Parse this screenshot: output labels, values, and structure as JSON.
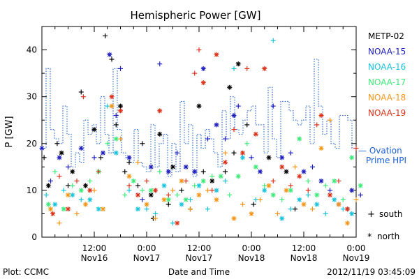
{
  "chart_data": {
    "type": "scatter",
    "title": "Hemispheric Power [GW]",
    "xlabel": "Date and Time",
    "ylabel": "P [GW]",
    "ylim": [
      0,
      45
    ],
    "y_ticks": [
      0,
      10,
      20,
      30,
      40
    ],
    "x_range_hours": [
      0,
      72
    ],
    "x_ticks": [
      {
        "hour": 12,
        "time": "12:00",
        "date": "Nov16"
      },
      {
        "hour": 24,
        "time": "0:00",
        "date": "Nov17"
      },
      {
        "hour": 36,
        "time": "12:00",
        "date": "Nov17"
      },
      {
        "hour": 48,
        "time": "0:00",
        "date": "Nov18"
      },
      {
        "hour": 60,
        "time": "12:00",
        "date": "Nov18"
      },
      {
        "hour": 72,
        "time": "0:00",
        "date": "Nov19"
      }
    ],
    "footer_left": "Plot: CCMC",
    "footer_right": "2012/11/19 03:45:09",
    "ovation_label": [
      "— Ovation",
      "Prime HPI"
    ],
    "symbol_legend": [
      {
        "symbol": "+",
        "label": "south"
      },
      {
        "symbol": "*",
        "label": "north"
      }
    ],
    "ovation": {
      "name": "Ovation Prime HPI",
      "color": "#1a5fd6",
      "values": [
        19,
        36,
        23,
        21,
        20,
        28,
        22,
        15,
        18,
        16,
        25,
        22,
        24,
        20,
        30,
        22,
        18,
        36,
        23,
        18,
        17,
        16,
        23,
        16,
        15,
        14,
        24,
        15,
        20,
        22,
        13,
        20,
        14,
        29,
        20,
        24,
        13,
        22,
        19,
        23,
        21,
        18,
        15,
        27,
        21,
        30,
        23,
        22,
        25,
        27,
        28,
        24,
        24,
        18,
        32,
        21,
        17,
        29,
        29,
        27,
        25,
        24,
        25,
        28,
        20,
        38,
        28,
        22,
        25,
        20,
        19,
        26,
        26,
        25,
        19
      ]
    },
    "series": [
      {
        "name": "METP-02",
        "color": "#000000",
        "points": [
          [
            0.5,
            17,
            "+"
          ],
          [
            1.5,
            11,
            "*"
          ],
          [
            3.5,
            20,
            "+"
          ],
          [
            4.5,
            18,
            "*"
          ],
          [
            6,
            11,
            "+"
          ],
          [
            7,
            14,
            "*"
          ],
          [
            9,
            31,
            "+"
          ],
          [
            10,
            11,
            "*"
          ],
          [
            12,
            23,
            "*"
          ],
          [
            13.5,
            17,
            "+"
          ],
          [
            14.5,
            43,
            "+"
          ],
          [
            16,
            38,
            "+"
          ],
          [
            17,
            24,
            "+"
          ],
          [
            18,
            28,
            "*"
          ],
          [
            19,
            14,
            "+"
          ],
          [
            20,
            16,
            "+"
          ],
          [
            22,
            11,
            "+"
          ],
          [
            23,
            20,
            "+"
          ],
          [
            25,
            9,
            "*"
          ],
          [
            25.5,
            4,
            "+"
          ],
          [
            27,
            22,
            "*"
          ],
          [
            29,
            7,
            "+"
          ],
          [
            30,
            15,
            "*"
          ],
          [
            32,
            10,
            "+"
          ],
          [
            34,
            6,
            "+"
          ],
          [
            36,
            28,
            "*"
          ],
          [
            37,
            14,
            "+"
          ],
          [
            39,
            12,
            "*"
          ],
          [
            42,
            14,
            "+"
          ],
          [
            43,
            32,
            "*"
          ],
          [
            44,
            18,
            "+"
          ],
          [
            45,
            37,
            "*"
          ],
          [
            47,
            24,
            "+"
          ],
          [
            48.5,
            7,
            "+"
          ],
          [
            52,
            17,
            "*"
          ],
          [
            56,
            14,
            "*"
          ],
          [
            58,
            6,
            "+"
          ]
        ]
      },
      {
        "name": "NOAA-15",
        "color": "#1e1ebe",
        "points": [
          [
            0,
            19,
            "*"
          ],
          [
            2,
            12,
            "+"
          ],
          [
            4,
            17,
            "*"
          ],
          [
            6,
            15,
            "+"
          ],
          [
            9,
            19,
            "*"
          ],
          [
            12,
            17,
            "+"
          ],
          [
            14,
            18,
            "*"
          ],
          [
            15.5,
            39,
            "*"
          ],
          [
            17,
            26,
            "+"
          ],
          [
            18,
            36,
            "+"
          ],
          [
            20,
            17,
            "*"
          ],
          [
            23,
            8,
            "+"
          ],
          [
            25,
            15,
            "*"
          ],
          [
            27,
            37,
            "+"
          ],
          [
            29,
            14,
            "*"
          ],
          [
            31,
            18,
            "+"
          ],
          [
            33,
            15,
            "*"
          ],
          [
            35,
            14,
            "*"
          ],
          [
            37,
            36,
            "*"
          ],
          [
            38,
            21,
            "+"
          ],
          [
            40,
            24,
            "*"
          ],
          [
            42,
            21,
            "+"
          ],
          [
            44,
            26,
            "*"
          ],
          [
            45,
            28,
            "+"
          ],
          [
            48,
            17,
            "+"
          ],
          [
            50,
            14,
            "*"
          ],
          [
            53,
            28,
            "+"
          ],
          [
            55,
            17,
            "*"
          ],
          [
            57,
            18,
            "+"
          ],
          [
            60,
            14,
            "*"
          ],
          [
            62,
            15,
            "+"
          ],
          [
            64,
            12,
            "*"
          ],
          [
            66,
            10,
            "+"
          ],
          [
            68,
            7,
            "*"
          ],
          [
            70,
            6,
            "+"
          ],
          [
            71,
            10,
            "*"
          ],
          [
            73,
            9,
            "+"
          ]
        ]
      },
      {
        "name": "NOAA-16",
        "color": "#19c3dc",
        "points": [
          [
            1,
            9,
            "+"
          ],
          [
            3,
            7,
            "*"
          ],
          [
            5,
            10,
            "+"
          ],
          [
            7,
            9,
            "*"
          ],
          [
            9,
            8,
            "+"
          ],
          [
            11,
            8,
            "*"
          ],
          [
            13,
            6,
            "*"
          ],
          [
            15,
            28,
            "+"
          ],
          [
            17,
            18,
            "*"
          ],
          [
            20,
            10,
            "+"
          ],
          [
            22,
            6,
            "*"
          ],
          [
            24,
            6,
            "+"
          ],
          [
            26,
            5,
            "+"
          ],
          [
            28,
            11,
            "*"
          ],
          [
            30,
            3,
            "+"
          ],
          [
            32,
            7,
            "*"
          ],
          [
            34,
            8,
            "+"
          ],
          [
            36,
            11,
            "*"
          ],
          [
            38,
            6,
            "+"
          ],
          [
            40,
            10,
            "*"
          ],
          [
            42,
            12,
            "+"
          ],
          [
            44,
            36,
            "+"
          ],
          [
            46,
            17,
            "*"
          ],
          [
            49,
            8,
            "+"
          ],
          [
            51,
            10,
            "*"
          ],
          [
            53,
            42,
            "+"
          ],
          [
            55,
            4,
            "*"
          ],
          [
            57,
            6,
            "+"
          ],
          [
            59,
            8,
            "*"
          ],
          [
            61,
            9,
            "+"
          ],
          [
            63,
            7,
            "*"
          ],
          [
            65,
            5,
            "+"
          ],
          [
            67,
            8,
            "*"
          ],
          [
            69,
            6,
            "+"
          ],
          [
            71,
            5,
            "*"
          ]
        ]
      },
      {
        "name": "NOAA-17",
        "color": "#3ceb78",
        "points": [
          [
            1.5,
            7,
            "*"
          ],
          [
            3,
            14,
            "+"
          ],
          [
            5,
            6,
            "*"
          ],
          [
            7,
            11,
            "+"
          ],
          [
            9,
            10,
            "*"
          ],
          [
            11,
            12,
            "+"
          ],
          [
            13,
            14,
            "*"
          ],
          [
            15,
            20,
            "+"
          ],
          [
            17,
            21,
            "*"
          ],
          [
            19,
            9,
            "+"
          ],
          [
            21,
            12,
            "*"
          ],
          [
            23,
            10,
            "+"
          ],
          [
            25,
            10,
            "*"
          ],
          [
            27,
            14,
            "+"
          ],
          [
            29,
            8,
            "*"
          ],
          [
            31,
            9,
            "+"
          ],
          [
            33,
            8,
            "*"
          ],
          [
            35,
            11,
            "+"
          ],
          [
            37,
            12,
            "*"
          ],
          [
            39,
            13,
            "+"
          ],
          [
            41,
            13,
            "*"
          ],
          [
            43,
            9,
            "+"
          ],
          [
            45,
            13,
            "*"
          ],
          [
            47,
            20,
            "+"
          ],
          [
            49,
            15,
            "*"
          ],
          [
            51,
            11,
            "+"
          ],
          [
            53,
            9,
            "*"
          ],
          [
            55,
            8,
            "+"
          ],
          [
            57,
            10,
            "*"
          ],
          [
            59,
            21,
            "*"
          ],
          [
            61,
            12,
            "+"
          ],
          [
            63,
            9,
            "*"
          ],
          [
            65,
            11,
            "+"
          ],
          [
            67,
            12,
            "*"
          ],
          [
            69,
            8,
            "+"
          ],
          [
            71,
            17,
            "*"
          ],
          [
            73,
            11,
            "*"
          ]
        ]
      },
      {
        "name": "NOAA-18",
        "color": "#f59619",
        "points": [
          [
            2,
            6,
            "*"
          ],
          [
            4,
            3,
            "+"
          ],
          [
            6,
            9,
            "*"
          ],
          [
            8,
            5,
            "+"
          ],
          [
            10,
            7,
            "*"
          ],
          [
            12,
            10,
            "+"
          ],
          [
            14,
            6,
            "*"
          ],
          [
            16,
            28,
            "*"
          ],
          [
            18,
            21,
            "+"
          ],
          [
            20,
            13,
            "*"
          ],
          [
            22,
            16,
            "+"
          ],
          [
            24,
            7,
            "*"
          ],
          [
            26,
            4,
            "+"
          ],
          [
            28,
            8,
            "*"
          ],
          [
            30,
            10,
            "+"
          ],
          [
            32,
            12,
            "*"
          ],
          [
            34,
            6,
            "+"
          ],
          [
            36,
            9,
            "*"
          ],
          [
            38,
            10,
            "+"
          ],
          [
            40,
            8,
            "*"
          ],
          [
            42,
            18,
            "+"
          ],
          [
            44,
            4,
            "*"
          ],
          [
            46,
            7,
            "+"
          ],
          [
            48,
            5,
            "*"
          ],
          [
            50,
            8,
            "+"
          ],
          [
            52,
            11,
            "*"
          ],
          [
            54,
            5,
            "+"
          ],
          [
            56,
            10,
            "*"
          ],
          [
            58,
            15,
            "+"
          ],
          [
            60,
            7,
            "*"
          ],
          [
            62,
            6,
            "+"
          ],
          [
            64,
            19,
            "*"
          ],
          [
            66,
            25,
            "+"
          ],
          [
            68,
            7,
            "*"
          ],
          [
            70,
            3,
            "*"
          ],
          [
            72,
            8,
            "+"
          ]
        ]
      },
      {
        "name": "NOAA-19",
        "color": "#dc3219",
        "points": [
          [
            2.5,
            5,
            "*"
          ],
          [
            4,
            13,
            "+"
          ],
          [
            6,
            6,
            "*"
          ],
          [
            8,
            12,
            "+"
          ],
          [
            9.5,
            30,
            "+"
          ],
          [
            11,
            10,
            "*"
          ],
          [
            13,
            14,
            "+"
          ],
          [
            16,
            30,
            "*"
          ],
          [
            18,
            27,
            "*"
          ],
          [
            20,
            11,
            "+"
          ],
          [
            22,
            9,
            "*"
          ],
          [
            24,
            12,
            "+"
          ],
          [
            26,
            10,
            "*"
          ],
          [
            27,
            27,
            "*"
          ],
          [
            29,
            9,
            "+"
          ],
          [
            31,
            3,
            "*"
          ],
          [
            33,
            12,
            "+"
          ],
          [
            35,
            35,
            "+"
          ],
          [
            36,
            40,
            "+"
          ],
          [
            37,
            33,
            "*"
          ],
          [
            39,
            10,
            "+"
          ],
          [
            40,
            39,
            "*"
          ],
          [
            42,
            16,
            "*"
          ],
          [
            44,
            23,
            "+"
          ],
          [
            46,
            18,
            "*"
          ],
          [
            47,
            36,
            "+"
          ],
          [
            49,
            22,
            "*"
          ],
          [
            51,
            36,
            "*"
          ],
          [
            53,
            12,
            "+"
          ],
          [
            55,
            15,
            "*"
          ],
          [
            57,
            11,
            "+"
          ],
          [
            59,
            13,
            "*"
          ],
          [
            61,
            10,
            "+"
          ],
          [
            63,
            24,
            "+"
          ],
          [
            64,
            26,
            "*"
          ],
          [
            66,
            9,
            "*"
          ],
          [
            68,
            12,
            "+"
          ],
          [
            70,
            6,
            "*"
          ],
          [
            72,
            19,
            "+"
          ]
        ]
      }
    ]
  }
}
